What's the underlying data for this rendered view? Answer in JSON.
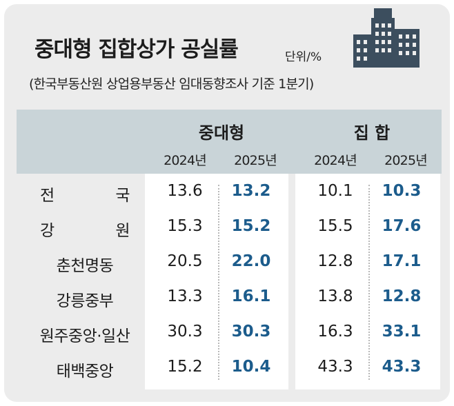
{
  "title": "중대형 집합상가 공실률",
  "unit": "단위/%",
  "subtitle": "(한국부동산원 상업용부동산 임대동향조사 기준 1분기)",
  "building_icon": "office-building-icon",
  "colors": {
    "background": "#ececec",
    "header_band": "#c9d4d8",
    "highlight": "#1c5c8c",
    "building": "#3c4e5e"
  },
  "chart_data": {
    "type": "table",
    "title": "중대형 집합상가 공실률",
    "unit": "단위/%",
    "groups": [
      {
        "name": "중대형",
        "years": [
          "2024년",
          "2025년"
        ]
      },
      {
        "name": "집 합",
        "years": [
          "2024년",
          "2025년"
        ]
      }
    ],
    "rows": [
      {
        "region": "전 국",
        "values": [
          "13.6",
          "13.2",
          "10.1",
          "10.3"
        ]
      },
      {
        "region": "강 원",
        "values": [
          "15.3",
          "15.2",
          "15.5",
          "17.6"
        ]
      },
      {
        "region": "춘천명동",
        "values": [
          "20.5",
          "22.0",
          "12.8",
          "17.1"
        ]
      },
      {
        "region": "강릉중부",
        "values": [
          "13.3",
          "16.1",
          "13.8",
          "12.8"
        ]
      },
      {
        "region": "원주중앙·일산",
        "values": [
          "30.3",
          "30.3",
          "16.3",
          "33.1"
        ]
      },
      {
        "region": "태백중앙",
        "values": [
          "15.2",
          "10.4",
          "43.3",
          "43.3"
        ]
      }
    ]
  }
}
